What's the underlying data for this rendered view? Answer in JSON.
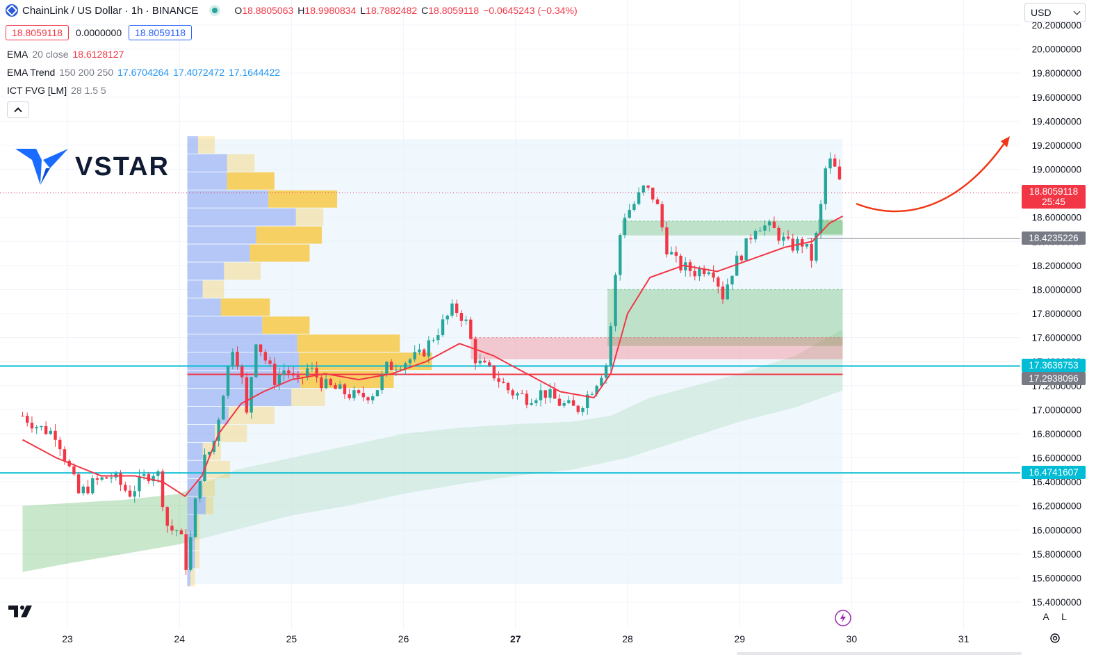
{
  "header": {
    "symbol": "ChainLink / US Dollar · 1h · BINANCE",
    "ohlc": [
      {
        "k": "O",
        "v": "18.8805063"
      },
      {
        "k": "H",
        "v": "18.9980834"
      },
      {
        "k": "L",
        "v": "18.7882482"
      },
      {
        "k": "C",
        "v": "18.8059118"
      },
      {
        "k": "",
        "v": "−0.0645243 (−0.34%)"
      }
    ]
  },
  "trade_boxes": {
    "sell": "18.8059118",
    "spread": "0.0000000",
    "buy": "18.8059118"
  },
  "indicators": [
    {
      "name": "EMA",
      "params": "20 close",
      "values": [
        {
          "v": "18.6128127",
          "c": "#f23645"
        }
      ]
    },
    {
      "name": "EMA Trend",
      "params": "150 200 250",
      "values": [
        {
          "v": "17.6704264",
          "c": "#2196f3"
        },
        {
          "v": "17.4072472",
          "c": "#2196f3"
        },
        {
          "v": "17.1644422",
          "c": "#2196f3"
        }
      ]
    },
    {
      "name": "ICT FVG [LM]",
      "params": "28 1.5 5",
      "values": []
    }
  ],
  "logo": {
    "text": "VSTAR"
  },
  "currency": "USD",
  "colors": {
    "up": "#26a69a",
    "down": "#f23645",
    "ema20": "#f23645",
    "cyan_line": "#00bcd4",
    "volume_profile_blue": "#b8c7f5",
    "volume_profile_orange": "#f7c948",
    "arrow": "#f23615"
  },
  "chart_data": {
    "type": "candlestick",
    "timeframe": "1h",
    "x_ticks": [
      "23",
      "24",
      "25",
      "26",
      "27",
      "28",
      "29",
      "30",
      "31"
    ],
    "y_ticks": [
      "20.2000000",
      "20.0000000",
      "19.8000000",
      "19.6000000",
      "19.4000000",
      "19.2000000",
      "19.0000000",
      "18.8000000",
      "18.6000000",
      "18.4000000",
      "18.2000000",
      "18.0000000",
      "17.8000000",
      "17.6000000",
      "17.4000000",
      "17.2000000",
      "17.0000000",
      "16.8000000",
      "16.6000000",
      "16.4000000",
      "16.2000000",
      "16.0000000",
      "15.8000000",
      "15.6000000",
      "15.4000000"
    ],
    "y_range": [
      15.4,
      20.2
    ],
    "last_price": {
      "value": "18.8059118",
      "countdown": "25:45"
    },
    "price_labels": [
      {
        "value": "18.4235226",
        "kind": "horizontal-line"
      },
      {
        "value": "17.3636753",
        "kind": "cyan-line"
      },
      {
        "value": "17.2938096",
        "kind": "poc-line"
      },
      {
        "value": "16.4741607",
        "kind": "cyan-line"
      }
    ],
    "close_path": [
      [
        22.6,
        16.95
      ],
      [
        22.75,
        16.85
      ],
      [
        22.9,
        16.8
      ],
      [
        23.0,
        16.55
      ],
      [
        23.1,
        16.3
      ],
      [
        23.25,
        16.4
      ],
      [
        23.4,
        16.45
      ],
      [
        23.55,
        16.3
      ],
      [
        23.7,
        16.45
      ],
      [
        23.8,
        16.5
      ],
      [
        23.9,
        16.0
      ],
      [
        24.0,
        16.0
      ],
      [
        24.07,
        15.65
      ],
      [
        24.12,
        16.1
      ],
      [
        24.2,
        16.55
      ],
      [
        24.3,
        16.7
      ],
      [
        24.4,
        17.2
      ],
      [
        24.48,
        17.55
      ],
      [
        24.55,
        17.3
      ],
      [
        24.6,
        16.95
      ],
      [
        24.68,
        17.6
      ],
      [
        24.75,
        17.45
      ],
      [
        24.85,
        17.25
      ],
      [
        24.95,
        17.35
      ],
      [
        25.05,
        17.2
      ],
      [
        25.15,
        17.35
      ],
      [
        25.3,
        17.2
      ],
      [
        25.45,
        17.15
      ],
      [
        25.6,
        17.1
      ],
      [
        25.75,
        17.15
      ],
      [
        25.85,
        17.35
      ],
      [
        26.0,
        17.4
      ],
      [
        26.15,
        17.45
      ],
      [
        26.3,
        17.65
      ],
      [
        26.45,
        17.85
      ],
      [
        26.55,
        17.75
      ],
      [
        26.65,
        17.4
      ],
      [
        26.8,
        17.3
      ],
      [
        26.95,
        17.15
      ],
      [
        27.1,
        17.1
      ],
      [
        27.25,
        17.15
      ],
      [
        27.4,
        17.05
      ],
      [
        27.55,
        17.0
      ],
      [
        27.7,
        17.2
      ],
      [
        27.82,
        17.4
      ],
      [
        27.88,
        18.0
      ],
      [
        27.95,
        18.6
      ],
      [
        28.05,
        18.7
      ],
      [
        28.15,
        18.85
      ],
      [
        28.25,
        18.75
      ],
      [
        28.35,
        18.35
      ],
      [
        28.45,
        18.2
      ],
      [
        28.6,
        18.15
      ],
      [
        28.75,
        18.2
      ],
      [
        28.85,
        17.95
      ],
      [
        28.95,
        18.2
      ],
      [
        29.05,
        18.35
      ],
      [
        29.15,
        18.55
      ],
      [
        29.3,
        18.5
      ],
      [
        29.45,
        18.35
      ],
      [
        29.55,
        18.4
      ],
      [
        29.65,
        18.25
      ],
      [
        29.72,
        18.65
      ],
      [
        29.78,
        19.1
      ],
      [
        29.85,
        19.0
      ],
      [
        29.92,
        18.8
      ]
    ],
    "ema20_path": [
      [
        22.6,
        16.75
      ],
      [
        22.9,
        16.6
      ],
      [
        23.3,
        16.45
      ],
      [
        23.6,
        16.45
      ],
      [
        23.85,
        16.4
      ],
      [
        24.05,
        16.28
      ],
      [
        24.2,
        16.45
      ],
      [
        24.35,
        16.8
      ],
      [
        24.55,
        17.05
      ],
      [
        24.75,
        17.15
      ],
      [
        25.0,
        17.25
      ],
      [
        25.3,
        17.3
      ],
      [
        25.6,
        17.25
      ],
      [
        25.9,
        17.3
      ],
      [
        26.2,
        17.4
      ],
      [
        26.5,
        17.55
      ],
      [
        26.8,
        17.45
      ],
      [
        27.1,
        17.3
      ],
      [
        27.4,
        17.15
      ],
      [
        27.7,
        17.1
      ],
      [
        27.85,
        17.3
      ],
      [
        28.0,
        17.8
      ],
      [
        28.2,
        18.1
      ],
      [
        28.5,
        18.2
      ],
      [
        28.8,
        18.15
      ],
      [
        29.1,
        18.25
      ],
      [
        29.4,
        18.35
      ],
      [
        29.65,
        18.4
      ],
      [
        29.8,
        18.55
      ],
      [
        29.92,
        18.61
      ]
    ],
    "ribbon_upper": [
      [
        22.6,
        16.2
      ],
      [
        23.5,
        16.25
      ],
      [
        24.0,
        16.3
      ],
      [
        24.5,
        16.5
      ],
      [
        25.0,
        16.6
      ],
      [
        25.5,
        16.7
      ],
      [
        26.0,
        16.8
      ],
      [
        26.5,
        16.85
      ],
      [
        27.0,
        16.88
      ],
      [
        27.5,
        16.9
      ],
      [
        27.85,
        16.95
      ],
      [
        28.2,
        17.1
      ],
      [
        28.6,
        17.2
      ],
      [
        29.0,
        17.3
      ],
      [
        29.5,
        17.45
      ],
      [
        29.92,
        17.67
      ]
    ],
    "ribbon_lower": [
      [
        22.6,
        15.65
      ],
      [
        23.0,
        15.72
      ],
      [
        23.5,
        15.8
      ],
      [
        24.0,
        15.88
      ],
      [
        24.5,
        16.0
      ],
      [
        25.0,
        16.12
      ],
      [
        25.5,
        16.2
      ],
      [
        26.0,
        16.3
      ],
      [
        26.5,
        16.38
      ],
      [
        27.0,
        16.45
      ],
      [
        27.5,
        16.5
      ],
      [
        28.0,
        16.6
      ],
      [
        28.5,
        16.75
      ],
      [
        29.0,
        16.9
      ],
      [
        29.5,
        17.02
      ],
      [
        29.92,
        17.16
      ]
    ],
    "fvg_zones": [
      {
        "kind": "bull",
        "x0": 27.95,
        "x1": 29.92,
        "y0": 18.45,
        "y1": 18.57
      },
      {
        "kind": "bull",
        "x0": 29.7,
        "x1": 29.92,
        "y0": 18.46,
        "y1": 18.58
      },
      {
        "kind": "bull",
        "x0": 27.82,
        "x1": 29.92,
        "y0": 17.53,
        "y1": 18.0
      },
      {
        "kind": "bear",
        "x0": 26.6,
        "x1": 29.92,
        "y0": 17.42,
        "y1": 17.6
      }
    ],
    "volume_profile": {
      "x0": 24.07,
      "x1": 29.92,
      "y0": 15.55,
      "y1": 19.25,
      "poc": 17.2938096,
      "rows": [
        {
          "y": 19.2,
          "blue": 0.07,
          "orange": 0.11
        },
        {
          "y": 19.05,
          "blue": 0.26,
          "orange": 0.18
        },
        {
          "y": 18.9,
          "blue": 0.26,
          "orange": 0.31
        },
        {
          "y": 18.75,
          "blue": 0.53,
          "orange": 0.45
        },
        {
          "y": 18.6,
          "blue": 0.71,
          "orange": 0.18
        },
        {
          "y": 18.45,
          "blue": 0.45,
          "orange": 0.43
        },
        {
          "y": 18.3,
          "blue": 0.41,
          "orange": 0.39
        },
        {
          "y": 18.15,
          "blue": 0.24,
          "orange": 0.24
        },
        {
          "y": 18.0,
          "blue": 0.1,
          "orange": 0.14
        },
        {
          "y": 17.85,
          "blue": 0.22,
          "orange": 0.32
        },
        {
          "y": 17.7,
          "blue": 0.49,
          "orange": 0.31
        },
        {
          "y": 17.55,
          "blue": 0.72,
          "orange": 0.67
        },
        {
          "y": 17.4,
          "blue": 0.73,
          "orange": 0.87
        },
        {
          "y": 17.25,
          "blue": 0.74,
          "orange": 0.61
        },
        {
          "y": 17.1,
          "blue": 0.68,
          "orange": 0.22
        },
        {
          "y": 16.95,
          "blue": 0.27,
          "orange": 0.3
        },
        {
          "y": 16.8,
          "blue": 0.18,
          "orange": 0.21
        },
        {
          "y": 16.65,
          "blue": 0.1,
          "orange": 0.12
        },
        {
          "y": 16.5,
          "blue": 0.12,
          "orange": 0.16
        },
        {
          "y": 16.35,
          "blue": 0.1,
          "orange": 0.08
        },
        {
          "y": 16.2,
          "blue": 0.12,
          "orange": 0.05
        },
        {
          "y": 16.05,
          "blue": 0.05,
          "orange": 0.03
        },
        {
          "y": 15.9,
          "blue": 0.05,
          "orange": 0.03
        },
        {
          "y": 15.75,
          "blue": 0.05,
          "orange": 0.03
        },
        {
          "y": 15.6,
          "blue": 0.02,
          "orange": 0.03
        }
      ]
    }
  },
  "bottom": {
    "auto_label": "A",
    "log_label": "L"
  }
}
